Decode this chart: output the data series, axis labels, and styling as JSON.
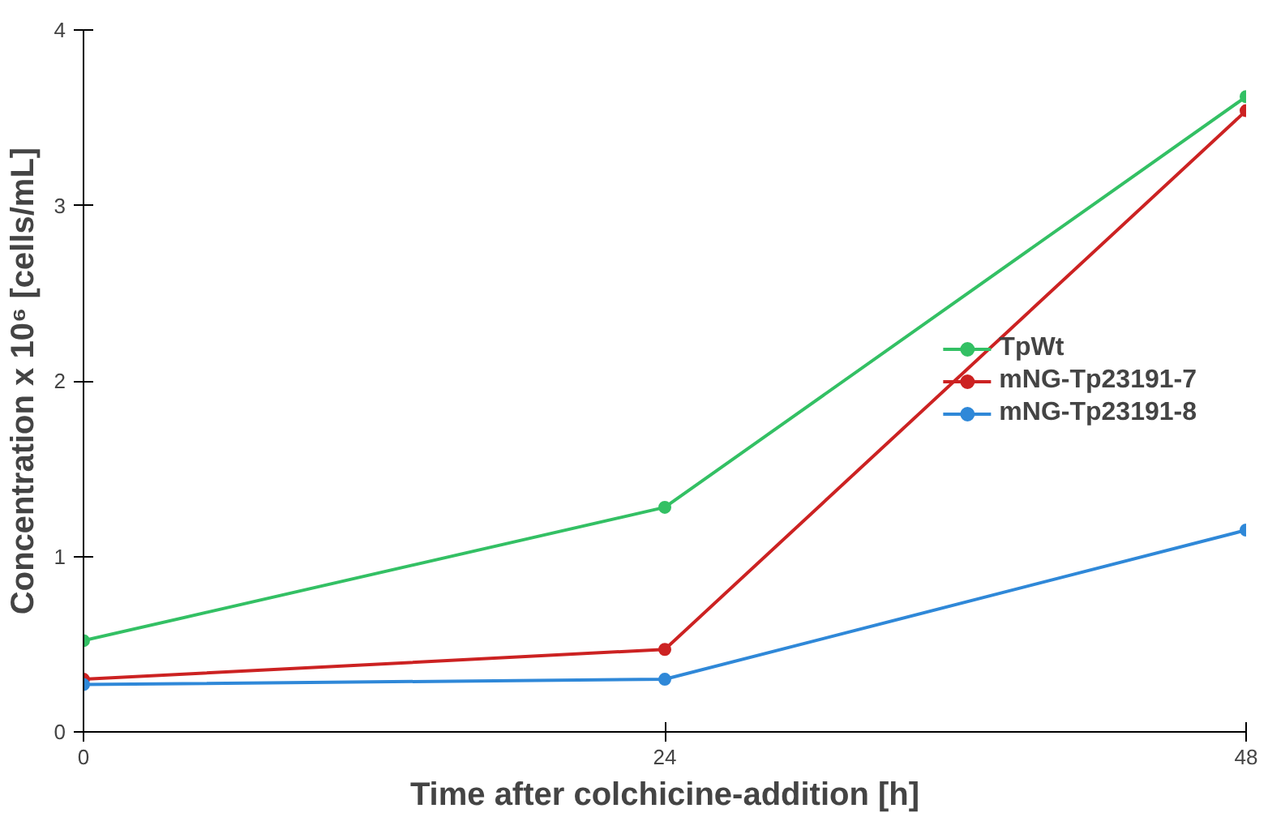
{
  "chart_data": {
    "type": "line",
    "xlabel": "Time after colchicine-addition [h]",
    "ylabel": "Concentration x 10⁶ [cells/mL]",
    "x": [
      0,
      24,
      48
    ],
    "series": [
      {
        "name": "TpWt",
        "color": "#33c064",
        "values": [
          0.52,
          1.28,
          3.62
        ]
      },
      {
        "name": "mNG-Tp23191-7",
        "color": "#cc2222",
        "values": [
          0.3,
          0.47,
          3.54
        ]
      },
      {
        "name": "mNG-Tp23191-8",
        "color": "#2f88d8",
        "values": [
          0.27,
          0.3,
          1.15
        ]
      }
    ],
    "xlim": [
      0,
      48
    ],
    "xticks": [
      0,
      24,
      48
    ],
    "ylim": [
      0,
      4
    ],
    "yticks": [
      0,
      1,
      2,
      3,
      4
    ],
    "grid": false,
    "legend": "right",
    "marker": "circle",
    "line_style": "solid"
  }
}
